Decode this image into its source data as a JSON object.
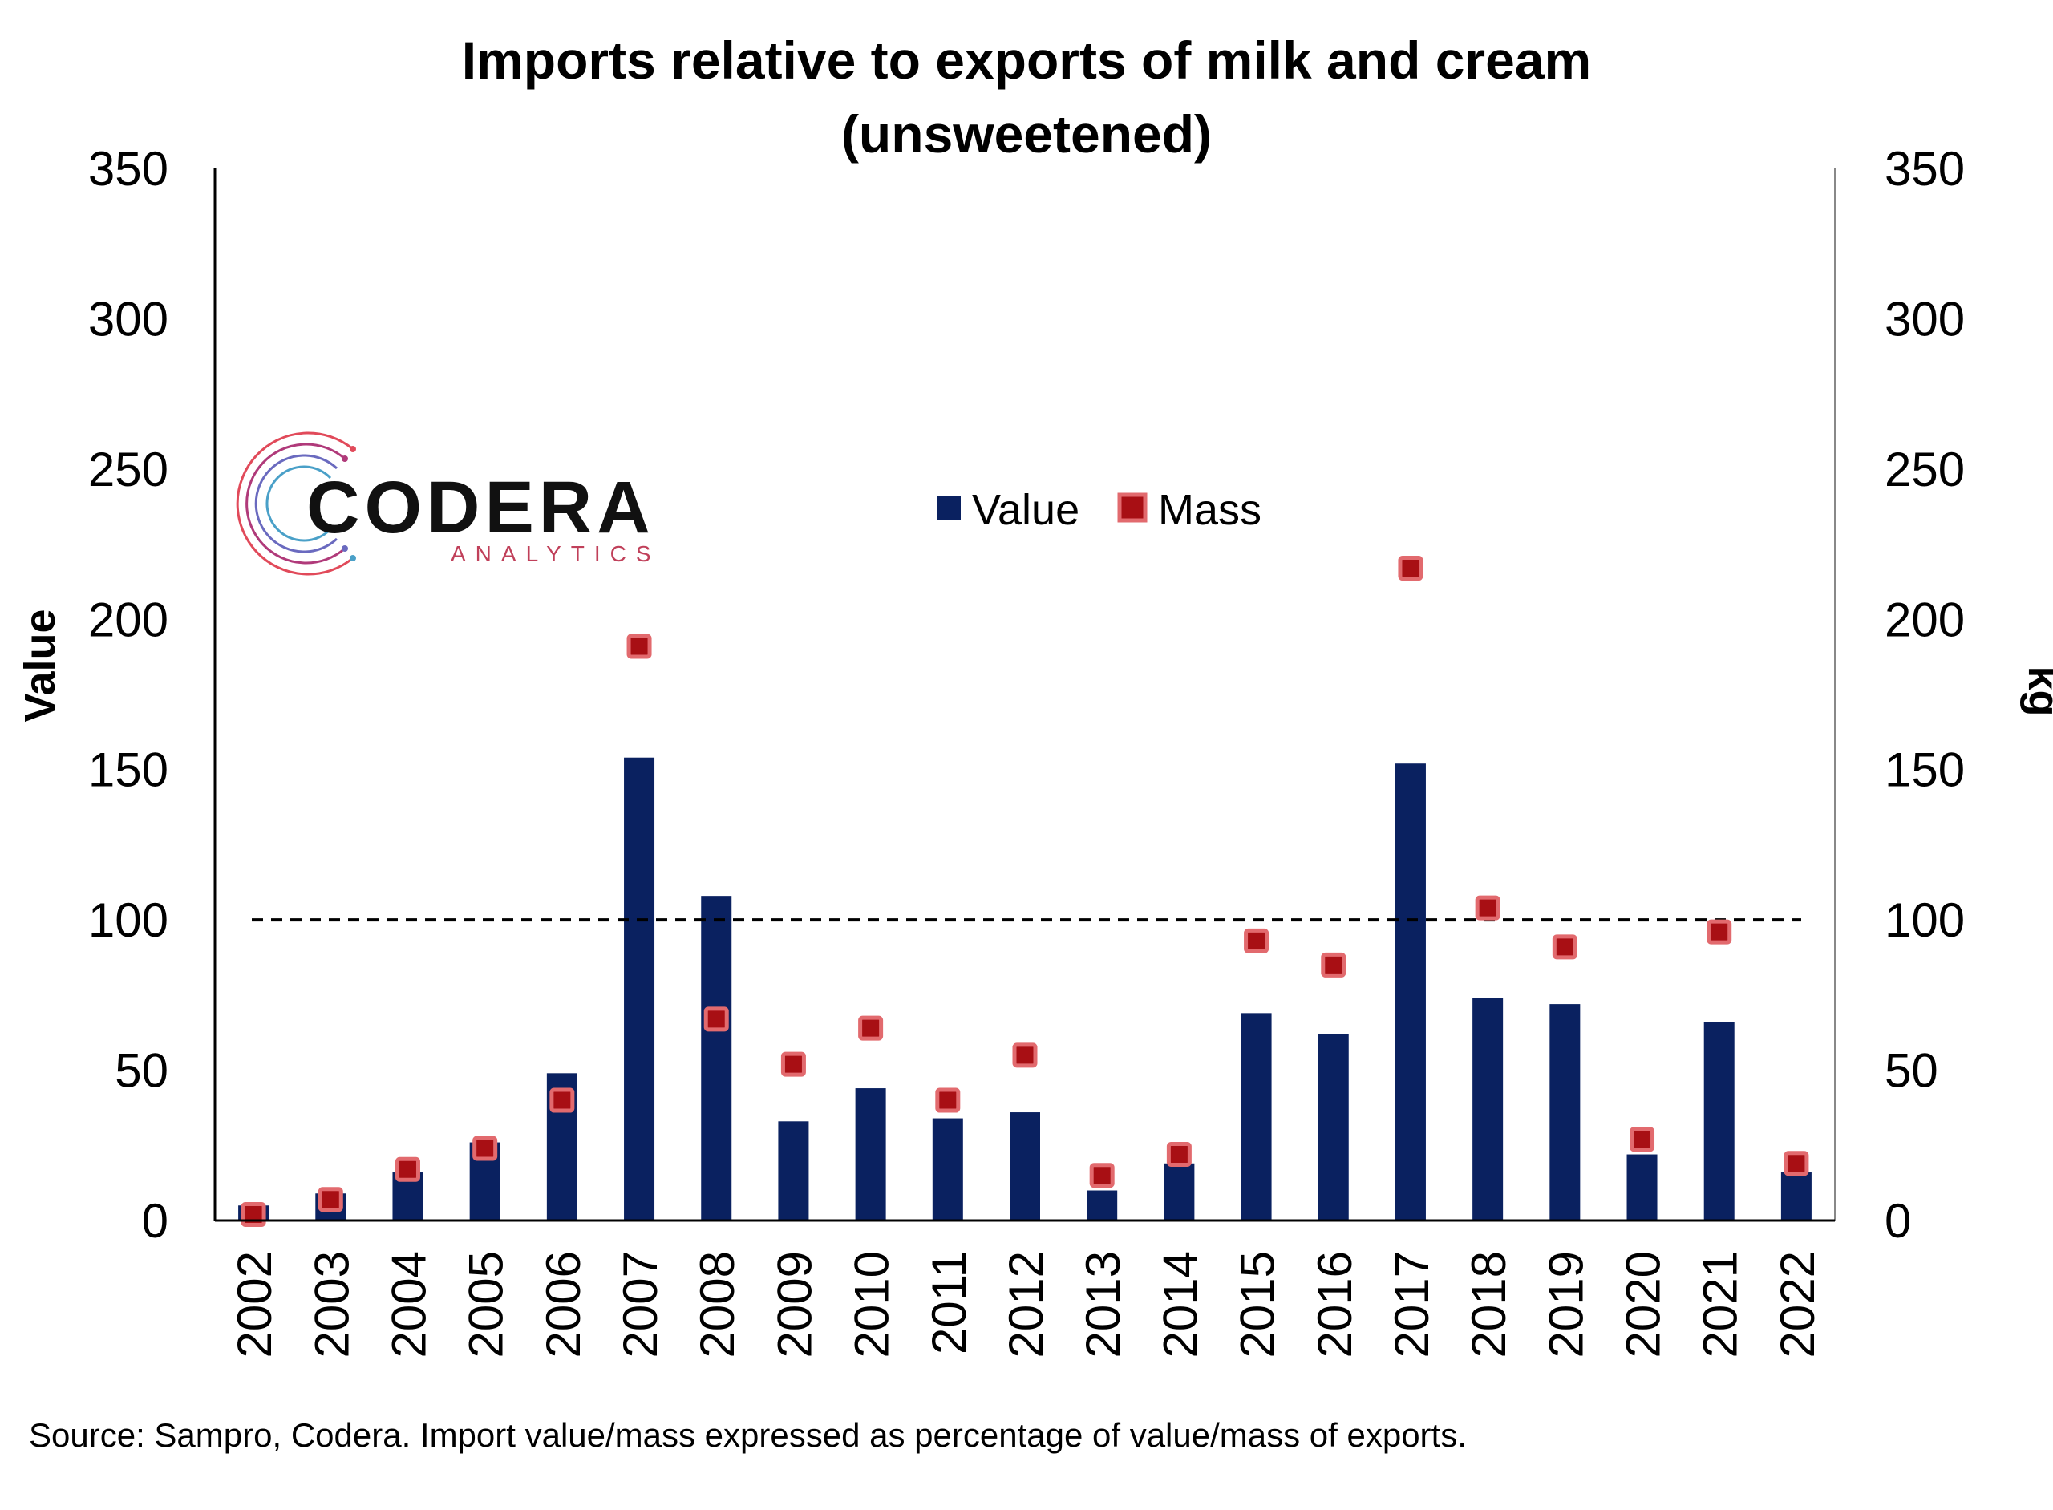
{
  "chart_data": {
    "type": "bar",
    "title_line1": "Imports relative to exports of milk and cream",
    "title_line2": "(unsweetened)",
    "ylabel_left": "Value",
    "ylabel_right": "kg",
    "ylim": [
      0,
      350
    ],
    "yticks": [
      "0",
      "50",
      "100",
      "150",
      "200",
      "250",
      "300",
      "350"
    ],
    "reference_line": 100,
    "categories": [
      "2002",
      "2003",
      "2004",
      "2005",
      "2006",
      "2007",
      "2008",
      "2009",
      "2010",
      "2011",
      "2012",
      "2013",
      "2014",
      "2015",
      "2016",
      "2017",
      "2018",
      "2019",
      "2020",
      "2021",
      "2022"
    ],
    "series": [
      {
        "name": "Value",
        "type": "bar",
        "color": "#0a2160",
        "values": [
          5,
          9,
          16,
          26,
          49,
          154,
          108,
          33,
          44,
          34,
          36,
          10,
          19,
          69,
          62,
          152,
          74,
          72,
          22,
          66,
          16
        ]
      },
      {
        "name": "Mass",
        "type": "marker",
        "color": "#c8151b",
        "values": [
          2,
          7,
          17,
          24,
          40,
          191,
          67,
          52,
          64,
          40,
          55,
          15,
          22,
          93,
          85,
          217,
          104,
          91,
          27,
          96,
          19
        ]
      }
    ],
    "legend_position": "top-center",
    "grid": false
  },
  "logo": {
    "main": "CODERA",
    "sub": "ANALYTICS"
  },
  "source": "Source: Sampro, Codera. Import value/mass expressed as percentage of value/mass of exports."
}
